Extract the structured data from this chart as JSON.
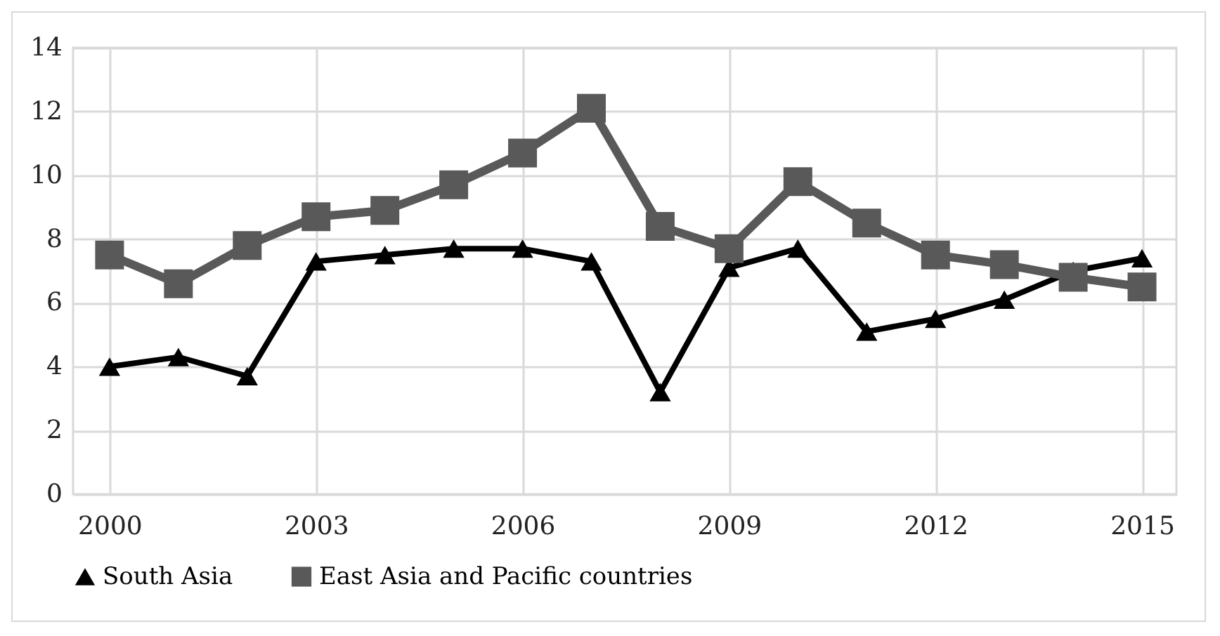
{
  "chart_data": {
    "type": "line",
    "categories": [
      "2000",
      null,
      null,
      "2003",
      null,
      null,
      "2006",
      null,
      null,
      "2009",
      null,
      null,
      "2012",
      null,
      null,
      "2015"
    ],
    "series": [
      {
        "name": "South Asia",
        "color": "#000000",
        "marker": "triangle",
        "values": [
          4.0,
          4.3,
          3.7,
          7.3,
          7.5,
          7.7,
          7.7,
          7.3,
          3.2,
          7.1,
          7.7,
          5.1,
          5.5,
          6.1,
          7.0,
          7.4
        ]
      },
      {
        "name": "East Asia and Pacific countries",
        "color": "#595959",
        "marker": "square",
        "values": [
          7.5,
          6.6,
          7.8,
          8.7,
          8.9,
          9.7,
          10.7,
          12.1,
          8.4,
          7.7,
          9.8,
          8.5,
          7.5,
          7.2,
          6.8,
          6.5
        ]
      }
    ],
    "ylim": [
      0,
      14
    ],
    "yticks": [
      0,
      2,
      4,
      6,
      8,
      10,
      12,
      14
    ],
    "grid": true,
    "legend": "bottom"
  }
}
